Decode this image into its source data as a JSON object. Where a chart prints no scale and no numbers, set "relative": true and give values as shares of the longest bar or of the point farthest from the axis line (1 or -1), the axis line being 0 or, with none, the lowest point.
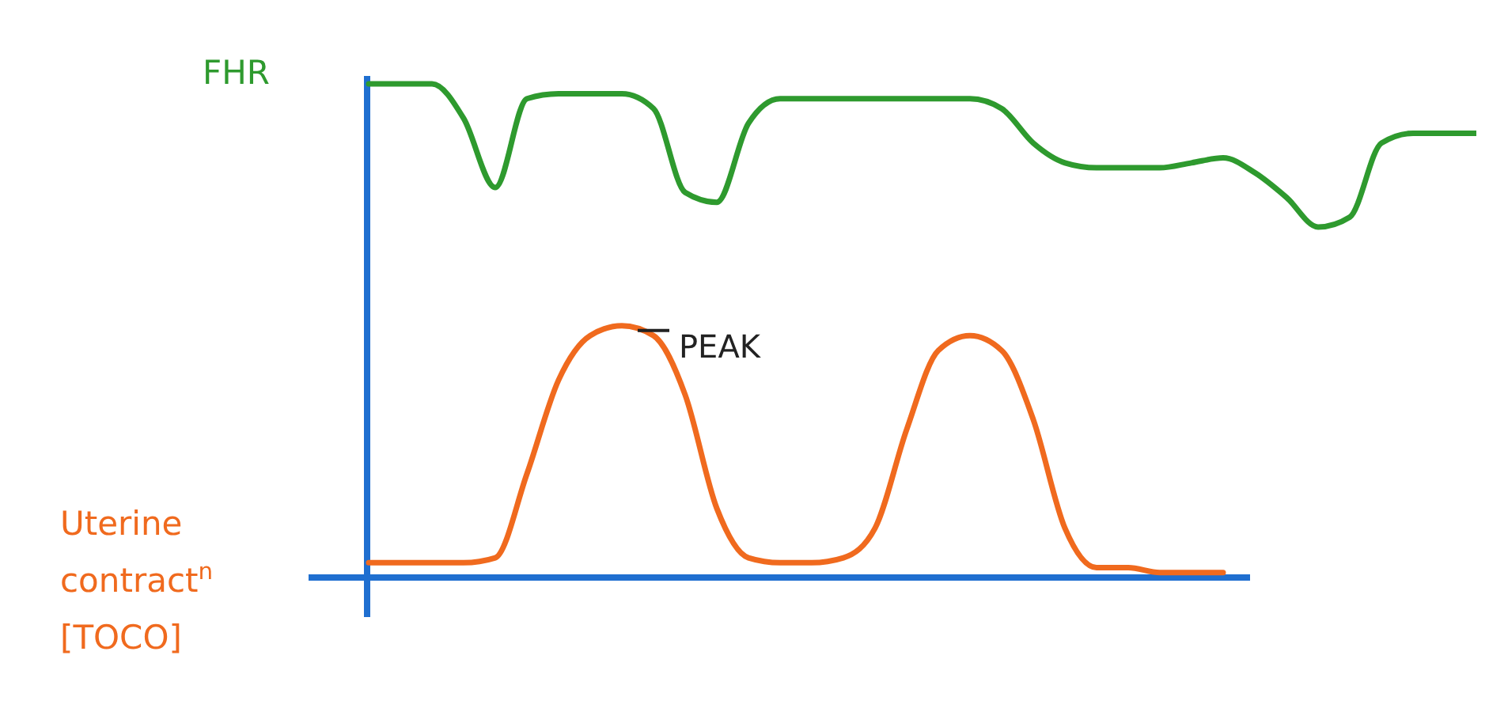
{
  "chart_data": {
    "type": "line",
    "relative": true,
    "categories": [
      null,
      null,
      null,
      null,
      null,
      null,
      null,
      null,
      null,
      null,
      null,
      null,
      null,
      null,
      null,
      null,
      null,
      null,
      null,
      null,
      null,
      null,
      null,
      null,
      null,
      null,
      null,
      null,
      null,
      null,
      null,
      null,
      null,
      null,
      null,
      null
    ],
    "series": [
      {
        "name": "FHR",
        "color": "#2e9a2e",
        "values": [
          1,
          1,
          1,
          0.93,
          0.79,
          0.97,
          0.98,
          0.98,
          0.98,
          0.95,
          0.78,
          0.76,
          0.92,
          0.97,
          0.97,
          0.97,
          0.97,
          0.97,
          0.97,
          0.97,
          0.95,
          0.88,
          0.84,
          0.83,
          0.83,
          0.83,
          0.84,
          0.85,
          0.82,
          0.77,
          0.71,
          0.73,
          0.88,
          0.9,
          0.9,
          0.9
        ]
      },
      {
        "name": "Uterine\ncontract$^{n}$\n[TOCO]",
        "color": "#f06a1e",
        "values": [
          0.03,
          0.03,
          0.03,
          0.03,
          0.04,
          0.21,
          0.4,
          0.49,
          0.51,
          0.49,
          0.37,
          0.14,
          0.04,
          0.03,
          0.03,
          0.04,
          0.1,
          0.3,
          0.46,
          0.49,
          0.46,
          0.32,
          0.1,
          0.02,
          0.02,
          0.01,
          0.01,
          0.01,
          null,
          null,
          null,
          null,
          null,
          null,
          null,
          null
        ]
      }
    ],
    "annotations": [
      "PEAK"
    ]
  }
}
